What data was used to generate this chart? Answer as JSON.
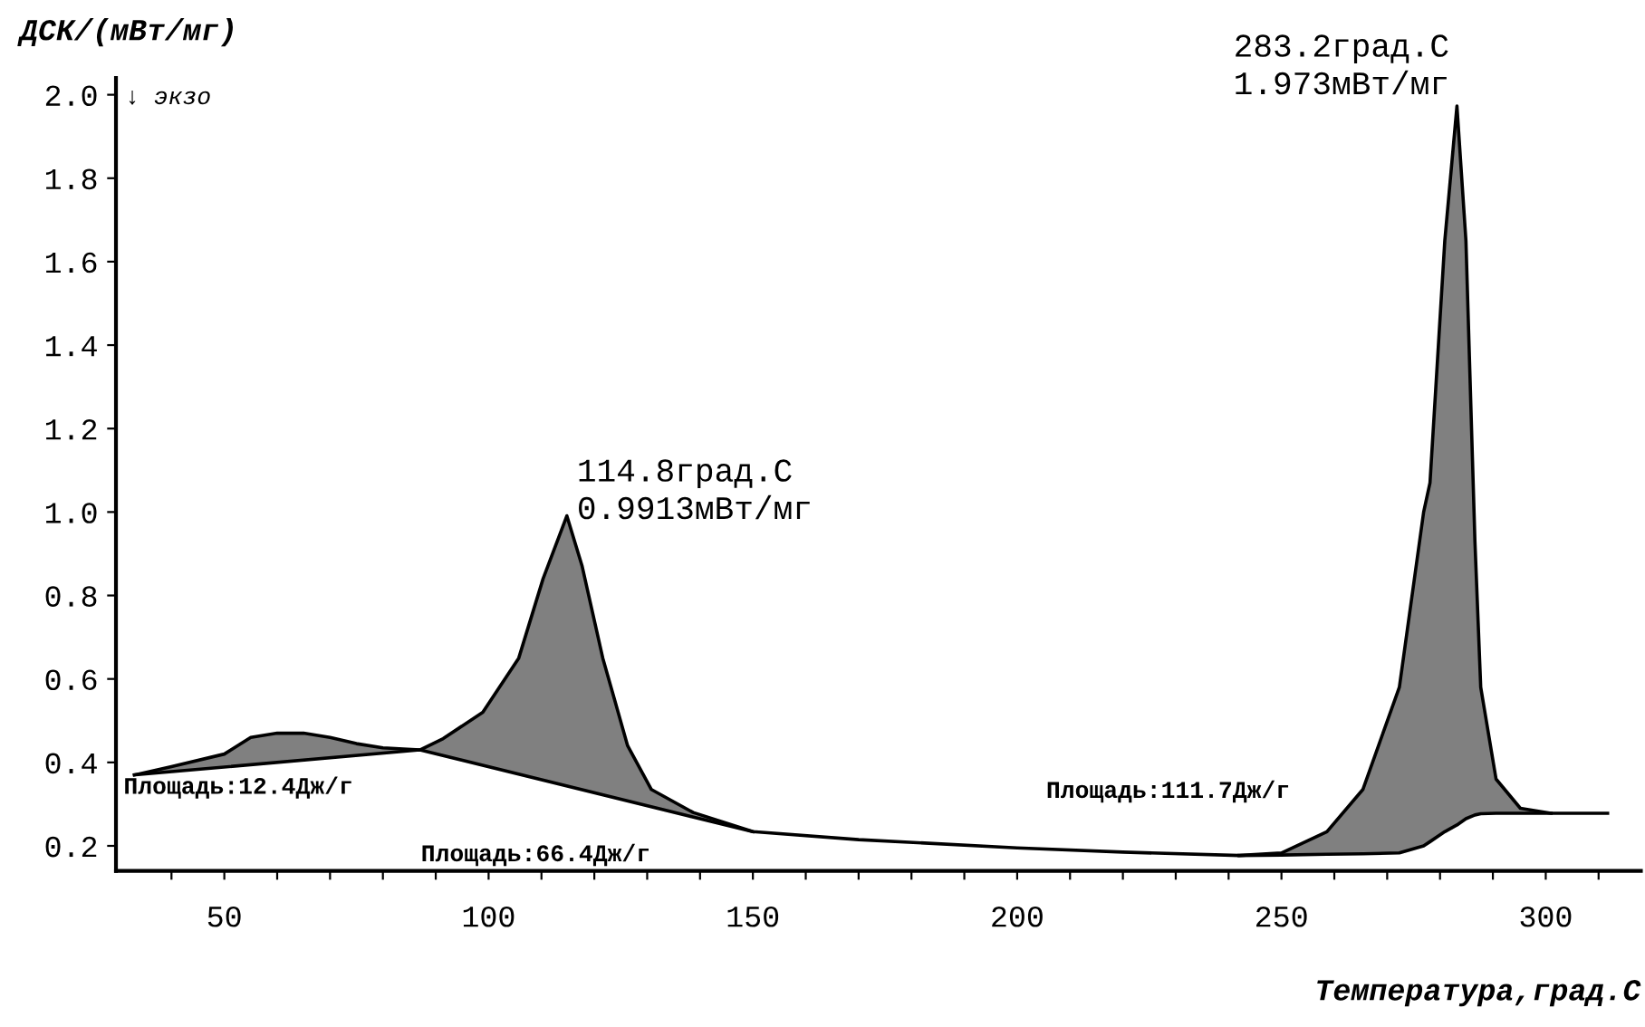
{
  "chart_data": {
    "type": "line",
    "xlabel": "Температура,град.С",
    "ylabel": "ДСК/(мВт/мг)",
    "xlim": [
      29.5,
      318
    ],
    "ylim": [
      0.14,
      2.04
    ],
    "xticks": [
      {
        "value": 40,
        "label": null
      },
      50,
      {
        "value": 60,
        "label": null
      },
      {
        "value": 70,
        "label": null
      },
      {
        "value": 80,
        "label": null
      },
      {
        "value": 90,
        "label": null
      },
      100,
      {
        "value": 110,
        "label": null
      },
      {
        "value": 120,
        "label": null
      },
      {
        "value": 130,
        "label": null
      },
      {
        "value": 140,
        "label": null
      },
      150,
      {
        "value": 160,
        "label": null
      },
      {
        "value": 170,
        "label": null
      },
      {
        "value": 180,
        "label": null
      },
      {
        "value": 190,
        "label": null
      },
      200,
      {
        "value": 210,
        "label": null
      },
      {
        "value": 220,
        "label": null
      },
      {
        "value": 230,
        "label": null
      },
      {
        "value": 240,
        "label": null
      },
      250,
      {
        "value": 260,
        "label": null
      },
      {
        "value": 270,
        "label": null
      },
      {
        "value": 280,
        "label": null
      },
      {
        "value": 290,
        "label": null
      },
      300,
      {
        "value": 310,
        "label": null
      }
    ],
    "yticks": [
      0.2,
      0.4,
      0.6,
      0.8,
      {
        "value": 1,
        "label": "1.0"
      },
      1.2,
      1.4,
      1.6,
      1.8,
      {
        "value": 2,
        "label": "2.0"
      }
    ],
    "grid": false,
    "series": [
      {
        "color": "#000000",
        "x": [
          33,
          40,
          50,
          55,
          60,
          65,
          70,
          75,
          80,
          87,
          91.4,
          98.9,
          105.7,
          110.3,
          114.8,
          117.7,
          121.6,
          126.3,
          130.8,
          138.7,
          150,
          170,
          200,
          220,
          242,
          250,
          258.6,
          265.4,
          272.3,
          276.9,
          278.1,
          280.9,
          283.2,
          284.9,
          286.6,
          287.7,
          290.6,
          295.2,
          301,
          311.7
        ],
        "values": [
          0.37,
          0.39,
          0.42,
          0.46,
          0.47,
          0.47,
          0.46,
          0.445,
          0.435,
          0.43,
          0.457,
          0.52,
          0.65,
          0.84,
          0.991,
          0.87,
          0.65,
          0.44,
          0.335,
          0.28,
          0.234,
          0.215,
          0.195,
          0.185,
          0.177,
          0.183,
          0.234,
          0.335,
          0.58,
          1.0,
          1.07,
          1.65,
          1.973,
          1.65,
          0.93,
          0.58,
          0.36,
          0.29,
          0.278,
          0.278
        ],
        "lower": [
          0.37,
          0.378,
          0.389,
          0.394,
          0.4,
          0.406,
          0.411,
          0.417,
          0.422,
          0.43,
          0.416,
          0.393,
          0.372,
          0.358,
          0.344,
          0.335,
          0.322,
          0.308,
          0.294,
          0.269,
          0.234,
          null,
          null,
          null,
          0.177,
          0.178,
          0.18,
          0.181,
          0.183,
          0.2,
          0.21,
          0.234,
          0.25,
          0.265,
          0.274,
          0.277,
          0.278,
          0.278,
          0.278,
          null
        ],
        "upper": [
          0.37,
          0.39,
          0.42,
          0.46,
          0.47,
          0.47,
          0.46,
          0.445,
          0.435,
          0.43,
          0.457,
          0.52,
          0.65,
          0.84,
          0.991,
          0.87,
          0.65,
          0.44,
          0.335,
          0.28,
          0.234,
          null,
          null,
          null,
          0.177,
          0.183,
          0.234,
          0.335,
          0.58,
          1.0,
          1.07,
          1.65,
          1.973,
          1.65,
          0.93,
          0.58,
          0.36,
          0.29,
          0.278,
          null
        ]
      },
      {
        "color": "#000000",
        "x": [
          33,
          87,
          150
        ],
        "values": [
          0.37,
          0.43,
          0.234
        ]
      },
      {
        "color": "#000000",
        "x": [
          242,
          250,
          258.6,
          265.4,
          272.3,
          276.9,
          278.1,
          280.9,
          283.2,
          284.9,
          286.6,
          287.7,
          290.6,
          295.2,
          301
        ],
        "values": [
          0.177,
          0.178,
          0.18,
          0.181,
          0.183,
          0.2,
          0.21,
          0.234,
          0.25,
          0.265,
          0.274,
          0.277,
          0.278,
          0.278,
          0.278
        ]
      }
    ],
    "annotations": [
      {
        "text": "114.8град.С\n0.9913мВт/мг",
        "x": 114.8,
        "y": 0.9913
      },
      {
        "text": "283.2град.С\n1.973мВт/мг",
        "x": 283.2,
        "y": 1.973
      },
      "Площадь:12.4Дж/г",
      "Площадь:66.4Дж/г",
      "Площадь:111.7Дж/г",
      "↓ экзо"
    ]
  }
}
